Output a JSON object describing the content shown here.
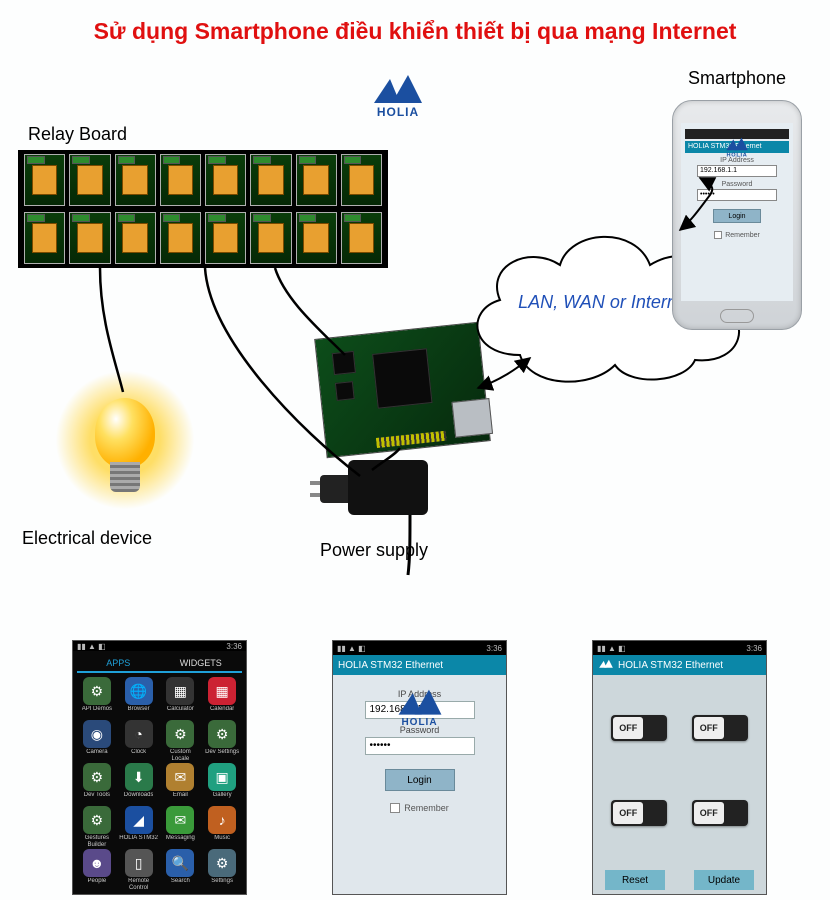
{
  "title": "Sử dụng Smartphone điều khiển thiết bị qua mạng Internet",
  "colors": {
    "title": "#e01010",
    "logo": "#1b4fa0",
    "cloud_text": "#2050b8",
    "relay_bg": "#000000",
    "relay_cell": "#e8a030",
    "pcb": "#0d4d1a",
    "app_header": "#0b87a8",
    "toggle_knob_text": "OFF"
  },
  "logo": {
    "brand": "HOLIA"
  },
  "labels": {
    "relay_board": "Relay Board",
    "smartphone": "Smartphone",
    "electrical_device": "Electrical device",
    "power_supply": "Power supply",
    "cloud": "LAN, WAN or Internet"
  },
  "relay": {
    "count_per_row": 8,
    "rows": 2
  },
  "phone_login": {
    "header": "HOLIA STM32 Ethernet",
    "ip_label": "IP Address",
    "ip_value": "192.168.1.1",
    "pw_label": "Password",
    "pw_value": "••••••",
    "login_btn": "Login",
    "remember": "Remember"
  },
  "status_bar": {
    "time": "3:36",
    "icons": "▮▮ ▲ ◧"
  },
  "shot_login": {
    "header": "HOLIA STM32 Ethernet",
    "ip_label": "IP Address",
    "ip_value": "192.168.1.1",
    "pw_label": "Password",
    "pw_value": "••••••",
    "login_btn": "Login",
    "remember": "Remember"
  },
  "shot_toggles": {
    "header": "HOLIA STM32 Ethernet",
    "state": "OFF",
    "footer_left": "Reset",
    "footer_right": "Update"
  },
  "shot_launcher": {
    "tab_apps": "APPS",
    "tab_widgets": "WIDGETS",
    "icons": [
      {
        "n": "API Demos",
        "c": "#3a6a3a",
        "g": "⚙"
      },
      {
        "n": "Browser",
        "c": "#2a5faa",
        "g": "🌐"
      },
      {
        "n": "Calculator",
        "c": "#333",
        "g": "▦"
      },
      {
        "n": "Calendar",
        "c": "#c23",
        "g": "▦"
      },
      {
        "n": "Camera",
        "c": "#2a4a7a",
        "g": "◉"
      },
      {
        "n": "Clock",
        "c": "#333",
        "g": "◔"
      },
      {
        "n": "Custom Locale",
        "c": "#3a6a3a",
        "g": "⚙"
      },
      {
        "n": "Dev Settings",
        "c": "#3a6a3a",
        "g": "⚙"
      },
      {
        "n": "Dev Tools",
        "c": "#3a6a3a",
        "g": "⚙"
      },
      {
        "n": "Downloads",
        "c": "#2a7a4a",
        "g": "⬇"
      },
      {
        "n": "Email",
        "c": "#b08030",
        "g": "✉"
      },
      {
        "n": "Gallery",
        "c": "#20a080",
        "g": "▣"
      },
      {
        "n": "Gestures Builder",
        "c": "#3a6a3a",
        "g": "⚙"
      },
      {
        "n": "HOLIA STM32",
        "c": "#1b4fa0",
        "g": "◢"
      },
      {
        "n": "Messaging",
        "c": "#3a9a3a",
        "g": "✉"
      },
      {
        "n": "Music",
        "c": "#c06020",
        "g": "♪"
      },
      {
        "n": "People",
        "c": "#5a4a8a",
        "g": "☻"
      },
      {
        "n": "Remote Control",
        "c": "#555",
        "g": "▯"
      },
      {
        "n": "Search",
        "c": "#2a5faa",
        "g": "🔍"
      },
      {
        "n": "Settings",
        "c": "#4a6a7a",
        "g": "⚙"
      }
    ]
  }
}
